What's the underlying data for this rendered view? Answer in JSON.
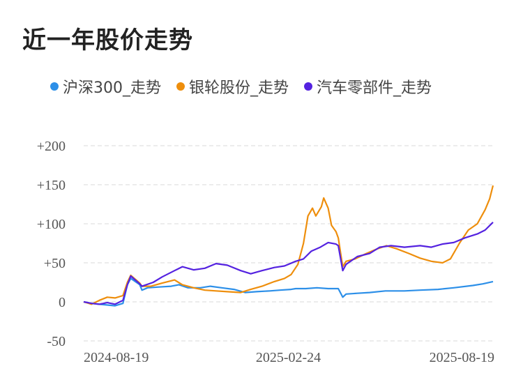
{
  "title": "近一年股价走势",
  "chart_data": {
    "type": "line",
    "ylim": [
      -50,
      200
    ],
    "yticks": [
      -50,
      0,
      50,
      100,
      150,
      200
    ],
    "ytick_labels": [
      "-50",
      "0",
      "+50",
      "+100",
      "+150",
      "+200"
    ],
    "xtick_labels": [
      "2024-08-19",
      "2025-02-24",
      "2025-08-19"
    ],
    "x_range": [
      "2024-08-19",
      "2025-08-19"
    ],
    "grid": true,
    "legend_position": "top",
    "series": [
      {
        "name": "沪深300_走势",
        "color": "#2c8fe8",
        "points": [
          [
            "2024-08-19",
            0
          ],
          [
            "2024-08-26",
            -2
          ],
          [
            "2024-09-02",
            -3
          ],
          [
            "2024-09-09",
            -4
          ],
          [
            "2024-09-16",
            -5
          ],
          [
            "2024-09-23",
            -2
          ],
          [
            "2024-09-27",
            22
          ],
          [
            "2024-09-30",
            30
          ],
          [
            "2024-10-08",
            22
          ],
          [
            "2024-10-10",
            15
          ],
          [
            "2024-10-15",
            18
          ],
          [
            "2024-10-25",
            19
          ],
          [
            "2024-11-05",
            20
          ],
          [
            "2024-11-12",
            22
          ],
          [
            "2024-11-20",
            18
          ],
          [
            "2024-12-01",
            18
          ],
          [
            "2024-12-10",
            20
          ],
          [
            "2024-12-20",
            18
          ],
          [
            "2024-12-31",
            16
          ],
          [
            "2025-01-10",
            12
          ],
          [
            "2025-01-20",
            13
          ],
          [
            "2025-02-01",
            14
          ],
          [
            "2025-02-10",
            15
          ],
          [
            "2025-02-20",
            16
          ],
          [
            "2025-02-24",
            17
          ],
          [
            "2025-03-05",
            17
          ],
          [
            "2025-03-15",
            18
          ],
          [
            "2025-03-25",
            17
          ],
          [
            "2025-04-03",
            17
          ],
          [
            "2025-04-07",
            6
          ],
          [
            "2025-04-10",
            10
          ],
          [
            "2025-04-20",
            11
          ],
          [
            "2025-05-01",
            12
          ],
          [
            "2025-05-15",
            14
          ],
          [
            "2025-06-01",
            14
          ],
          [
            "2025-06-15",
            15
          ],
          [
            "2025-07-01",
            16
          ],
          [
            "2025-07-15",
            18
          ],
          [
            "2025-08-01",
            21
          ],
          [
            "2025-08-10",
            23
          ],
          [
            "2025-08-19",
            26
          ]
        ]
      },
      {
        "name": "银轮股份_走势",
        "color": "#ee8e0c",
        "points": [
          [
            "2024-08-19",
            0
          ],
          [
            "2024-08-26",
            -3
          ],
          [
            "2024-09-02",
            2
          ],
          [
            "2024-09-09",
            6
          ],
          [
            "2024-09-16",
            5
          ],
          [
            "2024-09-23",
            8
          ],
          [
            "2024-09-27",
            25
          ],
          [
            "2024-09-30",
            34
          ],
          [
            "2024-10-08",
            24
          ],
          [
            "2024-10-10",
            20
          ],
          [
            "2024-10-18",
            20
          ],
          [
            "2024-10-28",
            24
          ],
          [
            "2024-11-08",
            28
          ],
          [
            "2024-11-15",
            22
          ],
          [
            "2024-11-25",
            18
          ],
          [
            "2024-12-05",
            15
          ],
          [
            "2024-12-15",
            14
          ],
          [
            "2024-12-25",
            13
          ],
          [
            "2025-01-06",
            12
          ],
          [
            "2025-01-15",
            16
          ],
          [
            "2025-01-25",
            20
          ],
          [
            "2025-02-05",
            26
          ],
          [
            "2025-02-14",
            30
          ],
          [
            "2025-02-20",
            35
          ],
          [
            "2025-02-26",
            48
          ],
          [
            "2025-03-03",
            75
          ],
          [
            "2025-03-07",
            110
          ],
          [
            "2025-03-11",
            120
          ],
          [
            "2025-03-14",
            110
          ],
          [
            "2025-03-19",
            122
          ],
          [
            "2025-03-21",
            133
          ],
          [
            "2025-03-25",
            120
          ],
          [
            "2025-03-28",
            98
          ],
          [
            "2025-04-01",
            90
          ],
          [
            "2025-04-03",
            82
          ],
          [
            "2025-04-07",
            45
          ],
          [
            "2025-04-10",
            52
          ],
          [
            "2025-04-18",
            55
          ],
          [
            "2025-04-28",
            62
          ],
          [
            "2025-05-08",
            68
          ],
          [
            "2025-05-16",
            72
          ],
          [
            "2025-05-25",
            68
          ],
          [
            "2025-06-05",
            62
          ],
          [
            "2025-06-15",
            56
          ],
          [
            "2025-06-25",
            52
          ],
          [
            "2025-07-05",
            50
          ],
          [
            "2025-07-12",
            55
          ],
          [
            "2025-07-20",
            75
          ],
          [
            "2025-07-28",
            92
          ],
          [
            "2025-08-05",
            100
          ],
          [
            "2025-08-12",
            118
          ],
          [
            "2025-08-16",
            132
          ],
          [
            "2025-08-19",
            149
          ]
        ]
      },
      {
        "name": "汽车零部件_走势",
        "color": "#5422e0",
        "points": [
          [
            "2024-08-19",
            0
          ],
          [
            "2024-08-26",
            -2
          ],
          [
            "2024-09-02",
            -3
          ],
          [
            "2024-09-09",
            -1
          ],
          [
            "2024-09-16",
            -3
          ],
          [
            "2024-09-23",
            2
          ],
          [
            "2024-09-27",
            22
          ],
          [
            "2024-09-30",
            33
          ],
          [
            "2024-10-08",
            23
          ],
          [
            "2024-10-10",
            20
          ],
          [
            "2024-10-20",
            25
          ],
          [
            "2024-10-28",
            32
          ],
          [
            "2024-11-08",
            40
          ],
          [
            "2024-11-15",
            45
          ],
          [
            "2024-11-25",
            41
          ],
          [
            "2024-12-05",
            43
          ],
          [
            "2024-12-15",
            49
          ],
          [
            "2024-12-25",
            47
          ],
          [
            "2025-01-06",
            40
          ],
          [
            "2025-01-15",
            36
          ],
          [
            "2025-01-25",
            40
          ],
          [
            "2025-02-05",
            44
          ],
          [
            "2025-02-14",
            46
          ],
          [
            "2025-02-24",
            52
          ],
          [
            "2025-03-03",
            55
          ],
          [
            "2025-03-10",
            65
          ],
          [
            "2025-03-18",
            70
          ],
          [
            "2025-03-25",
            76
          ],
          [
            "2025-04-01",
            74
          ],
          [
            "2025-04-03",
            72
          ],
          [
            "2025-04-07",
            40
          ],
          [
            "2025-04-10",
            48
          ],
          [
            "2025-04-20",
            58
          ],
          [
            "2025-05-01",
            62
          ],
          [
            "2025-05-10",
            70
          ],
          [
            "2025-05-20",
            72
          ],
          [
            "2025-06-01",
            70
          ],
          [
            "2025-06-15",
            72
          ],
          [
            "2025-06-25",
            70
          ],
          [
            "2025-07-05",
            74
          ],
          [
            "2025-07-15",
            76
          ],
          [
            "2025-07-25",
            82
          ],
          [
            "2025-08-05",
            87
          ],
          [
            "2025-08-12",
            92
          ],
          [
            "2025-08-19",
            102
          ]
        ]
      }
    ]
  }
}
